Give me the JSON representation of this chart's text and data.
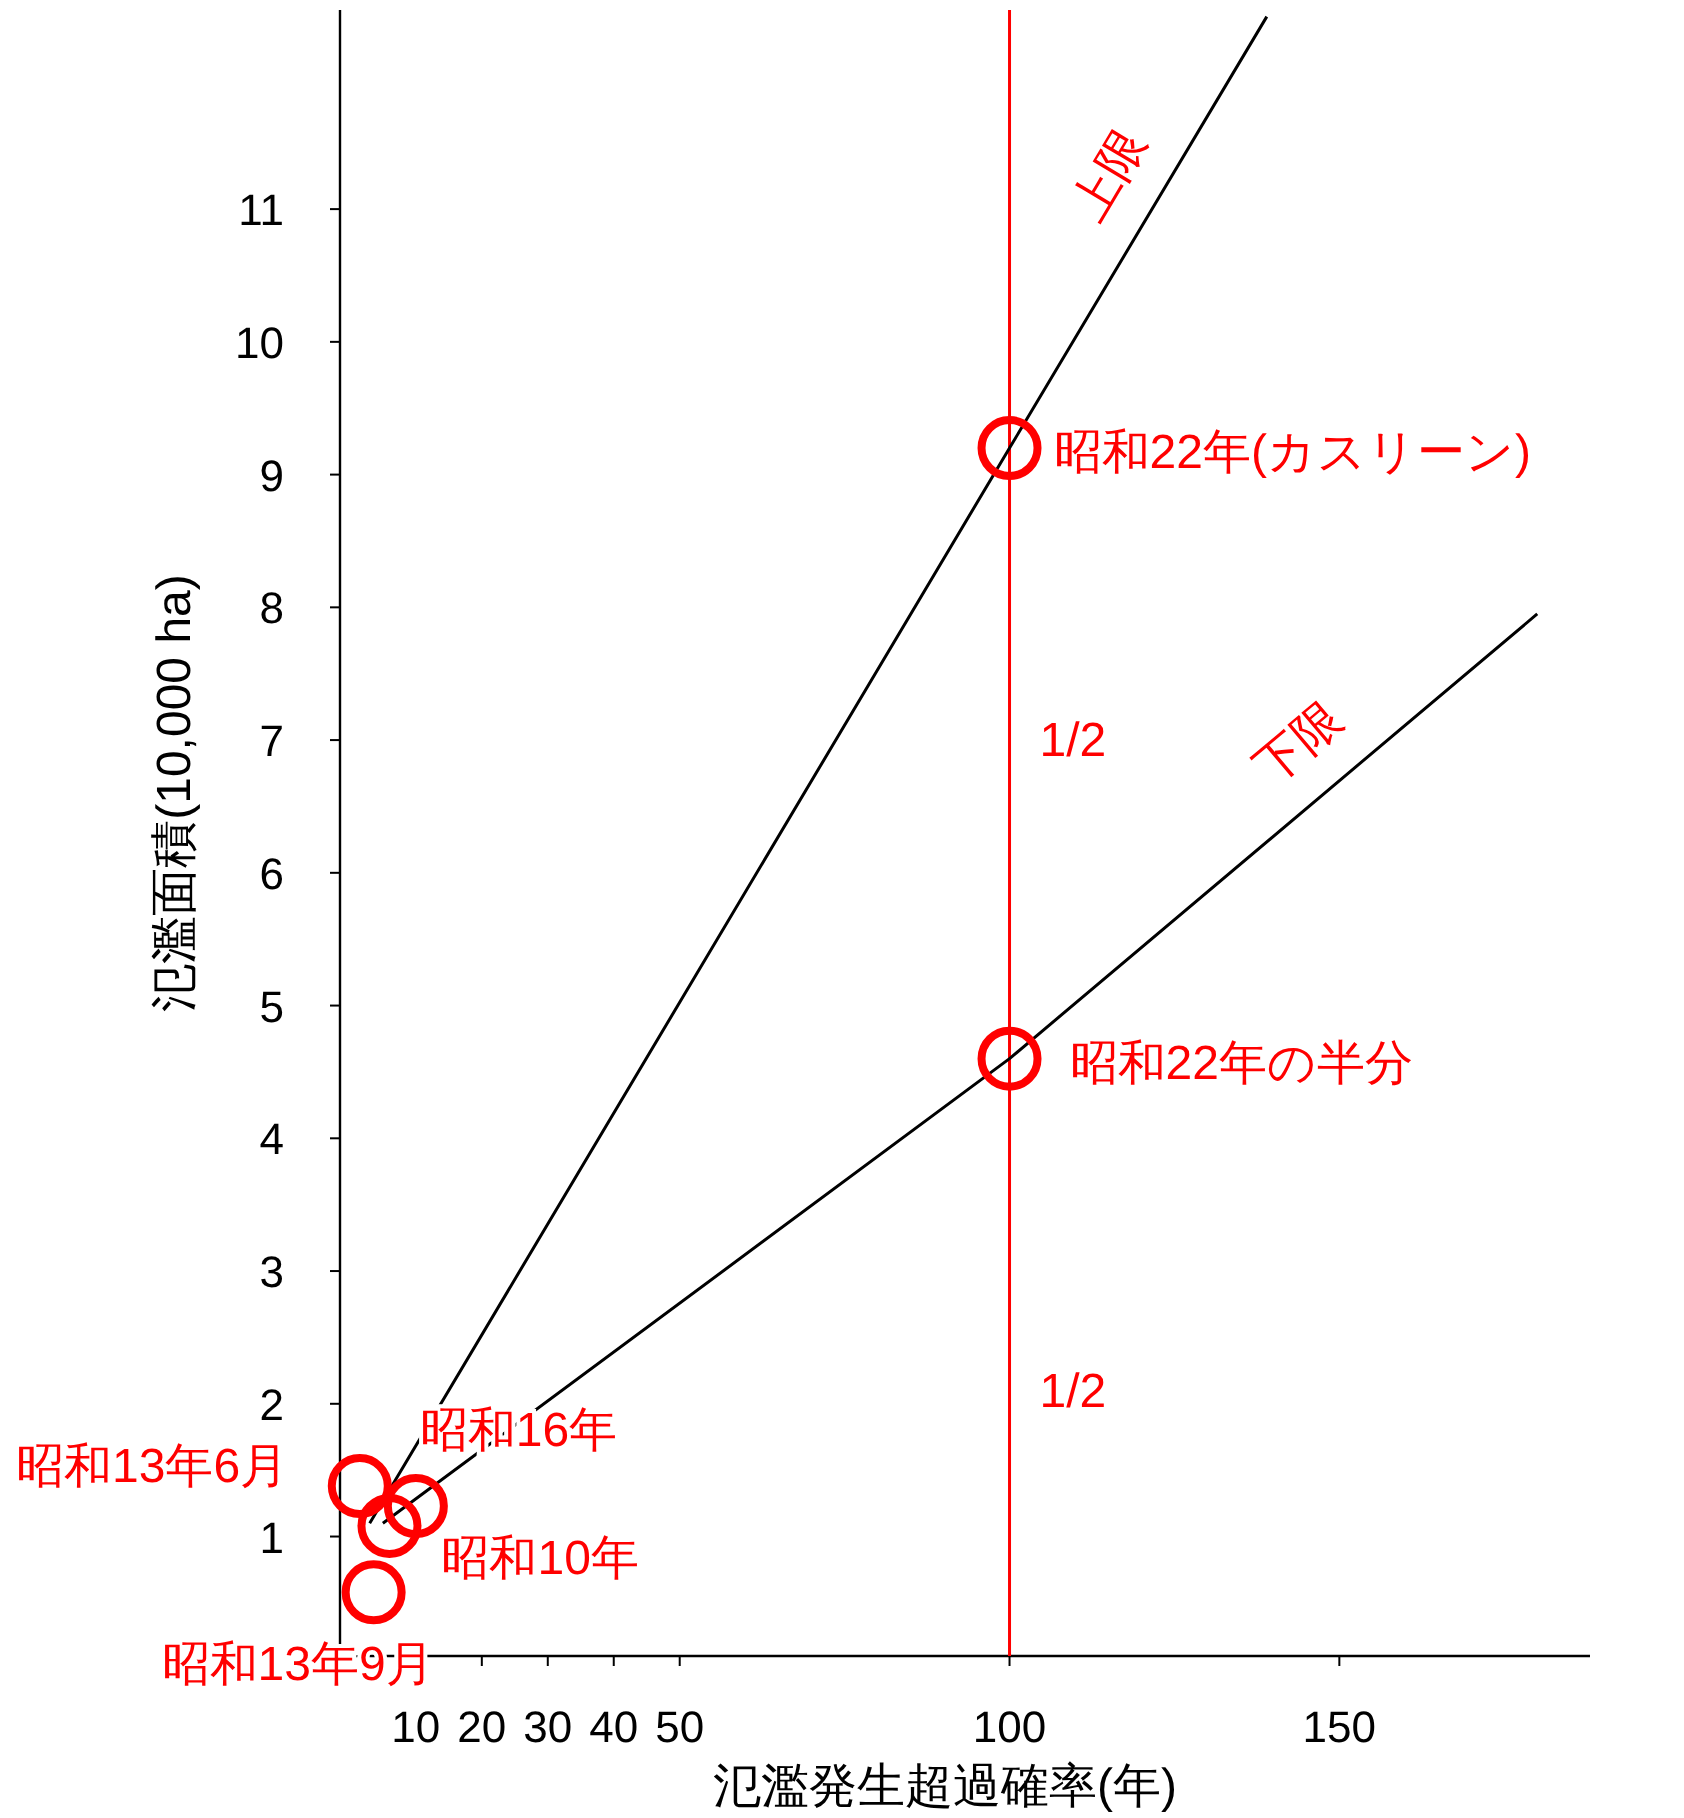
{
  "chart_data": {
    "type": "line",
    "xlabel": "氾濫発生超過確率(年)",
    "ylabel": "氾濫面積(10,000 ha)",
    "xlim": [
      -1.5,
      188
    ],
    "ylim": [
      0.1,
      12.5
    ],
    "xticks": [
      10,
      20,
      30,
      40,
      50,
      100,
      150
    ],
    "yticks": [
      1,
      2,
      3,
      4,
      5,
      6,
      7,
      8,
      9,
      10,
      11
    ],
    "grid": false,
    "series": [
      {
        "name": "上限",
        "color": "#000000",
        "x": [
          3,
          100,
          139
        ],
        "values": [
          1.1,
          9.2,
          12.45
        ]
      },
      {
        "name": "下限",
        "color": "#000000",
        "x": [
          5,
          100,
          180
        ],
        "values": [
          1.1,
          4.6,
          7.95
        ]
      },
      {
        "type": "scatter",
        "marker": "circle",
        "color": "#ff0000",
        "x": [
          100,
          100,
          10,
          1.5,
          6,
          3.6
        ],
        "values": [
          9.2,
          4.6,
          1.23,
          1.38,
          1.08,
          0.58
        ]
      }
    ],
    "ref_lines": [
      {
        "axis": "x",
        "value": 100,
        "color": "#ff0000",
        "line_style": "solid"
      }
    ],
    "annotations": [
      {
        "text": "昭和22年(カスリーン)",
        "x": 100,
        "y": 9.2
      },
      {
        "text": "昭和22年の半分",
        "x": 100,
        "y": 4.6
      },
      {
        "text": "昭和16年",
        "x": 10,
        "y": 1.23
      },
      {
        "text": "昭和13年6月",
        "x": 1.5,
        "y": 1.38
      },
      {
        "text": "昭和10年",
        "x": 6,
        "y": 1.08
      },
      {
        "text": "昭和13年9月",
        "x": 3.6,
        "y": 0.58
      },
      {
        "text": "1/2",
        "x": 100,
        "y": 7
      },
      {
        "text": "1/2",
        "x": 100,
        "y": 2.1
      }
    ]
  }
}
